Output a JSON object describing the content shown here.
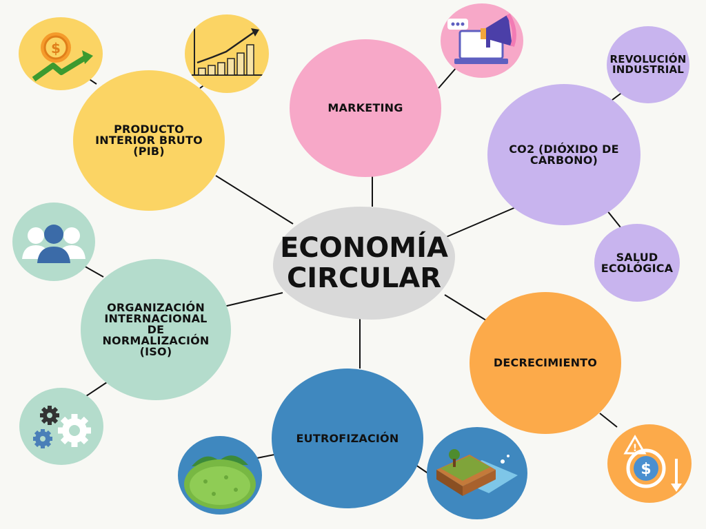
{
  "center": {
    "title": "ECONOMÍA\nCIRCULAR",
    "color": "#d9d9d9"
  },
  "topics": {
    "pib": {
      "label": "PRODUCTO\nINTERIOR BRUTO\n(PIB)",
      "color": "#fbd464"
    },
    "marketing": {
      "label": "MARKETING",
      "color": "#f7a8c8"
    },
    "co2": {
      "label": "CO2 (DIÓXIDO DE\nCARBONO)",
      "color": "#c8b4ee"
    },
    "revolucion": {
      "label": "REVOLUCIÓN\nINDUSTRIAL",
      "color": "#c8b4ee"
    },
    "salud": {
      "label": "SALUD\nECOLÓGICA",
      "color": "#c8b4ee"
    },
    "iso": {
      "label": "ORGANIZACIÓN\nINTERNACIONAL\nDE\nNORMALIZACIÓN\n(ISO)",
      "color": "#b4dccc"
    },
    "decrecimiento": {
      "label": "DECRECIMIENTO",
      "color": "#fcaa4a"
    },
    "eutrofizacion": {
      "label": "EUTROFIZACIÓN",
      "color": "#3f88bf"
    }
  },
  "icons": [
    "dollar-coin-growth-icon",
    "bar-chart-growth-icon",
    "megaphone-laptop-icon",
    "people-group-icon",
    "gears-icon",
    "green-lake-icon",
    "island-erosion-icon",
    "money-crisis-icon"
  ]
}
